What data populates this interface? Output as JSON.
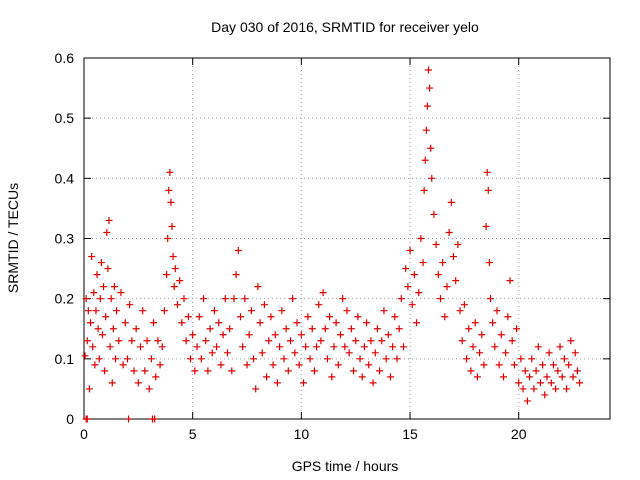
{
  "chart_data": {
    "type": "scatter",
    "title": "Day 030 of 2016, SRMTID for receiver yelo",
    "xlabel": "GPS time / hours",
    "ylabel": "SRMTID / TECUs",
    "xlim": [
      0,
      24.2
    ],
    "ylim": [
      0,
      0.6
    ],
    "x_ticks": [
      0,
      5,
      10,
      15,
      20
    ],
    "x_tick_labels": [
      "0",
      "5",
      "10",
      "15",
      "20"
    ],
    "y_ticks": [
      0,
      0.1,
      0.2,
      0.3,
      0.4,
      0.5,
      0.6
    ],
    "y_tick_labels": [
      "0",
      "0.1",
      "0.2",
      "0.3",
      "0.4",
      "0.5",
      "0.6"
    ],
    "grid": true,
    "marker": "+",
    "color": "#e00000",
    "series": [
      {
        "name": "SRMTID",
        "points": [
          [
            0.05,
            0.105
          ],
          [
            0.1,
            0.2
          ],
          [
            0.15,
            0.13
          ],
          [
            0.2,
            0.18
          ],
          [
            0.25,
            0.05
          ],
          [
            0.3,
            0.16
          ],
          [
            0.35,
            0.27
          ],
          [
            0.4,
            0.12
          ],
          [
            0.45,
            0.21
          ],
          [
            0.5,
            0.09
          ],
          [
            0.55,
            0.18
          ],
          [
            0.6,
            0.24
          ],
          [
            0.65,
            0.15
          ],
          [
            0.7,
            0.1
          ],
          [
            0.75,
            0.2
          ],
          [
            0.8,
            0.26
          ],
          [
            0.85,
            0.14
          ],
          [
            0.9,
            0.22
          ],
          [
            0.95,
            0.08
          ],
          [
            1.0,
            0.17
          ],
          [
            1.05,
            0.31
          ],
          [
            1.1,
            0.25
          ],
          [
            1.15,
            0.33
          ],
          [
            1.2,
            0.12
          ],
          [
            1.25,
            0.2
          ],
          [
            1.3,
            0.06
          ],
          [
            1.35,
            0.15
          ],
          [
            1.4,
            0.22
          ],
          [
            1.45,
            0.1
          ],
          [
            1.5,
            0.18
          ],
          [
            1.6,
            0.13
          ],
          [
            1.7,
            0.21
          ],
          [
            1.8,
            0.09
          ],
          [
            1.9,
            0.16
          ],
          [
            2.0,
            0.1
          ],
          [
            2.1,
            0.19
          ],
          [
            2.2,
            0.13
          ],
          [
            2.3,
            0.08
          ],
          [
            2.4,
            0.15
          ],
          [
            2.5,
            0.06
          ],
          [
            2.6,
            0.12
          ],
          [
            2.7,
            0.18
          ],
          [
            2.8,
            0.08
          ],
          [
            2.9,
            0.13
          ],
          [
            3.0,
            0.05
          ],
          [
            3.1,
            0.1
          ],
          [
            3.2,
            0.16
          ],
          [
            3.3,
            0.07
          ],
          [
            3.4,
            0.13
          ],
          [
            3.5,
            0.09
          ],
          [
            3.6,
            0.12
          ],
          [
            3.7,
            0.18
          ],
          [
            3.8,
            0.24
          ],
          [
            3.85,
            0.3
          ],
          [
            3.9,
            0.38
          ],
          [
            3.95,
            0.41
          ],
          [
            4.0,
            0.36
          ],
          [
            4.05,
            0.32
          ],
          [
            4.1,
            0.27
          ],
          [
            4.15,
            0.22
          ],
          [
            4.2,
            0.25
          ],
          [
            4.3,
            0.19
          ],
          [
            4.4,
            0.23
          ],
          [
            4.5,
            0.16
          ],
          [
            4.6,
            0.2
          ],
          [
            4.7,
            0.13
          ],
          [
            4.8,
            0.17
          ],
          [
            4.9,
            0.1
          ],
          [
            5.0,
            0.14
          ],
          [
            5.1,
            0.08
          ],
          [
            5.2,
            0.12
          ],
          [
            5.3,
            0.17
          ],
          [
            5.4,
            0.1
          ],
          [
            5.5,
            0.2
          ],
          [
            5.6,
            0.13
          ],
          [
            5.7,
            0.08
          ],
          [
            5.8,
            0.15
          ],
          [
            5.9,
            0.11
          ],
          [
            6.0,
            0.18
          ],
          [
            6.1,
            0.12
          ],
          [
            6.2,
            0.16
          ],
          [
            6.3,
            0.09
          ],
          [
            6.4,
            0.14
          ],
          [
            6.5,
            0.2
          ],
          [
            6.6,
            0.11
          ],
          [
            6.7,
            0.15
          ],
          [
            6.8,
            0.08
          ],
          [
            6.9,
            0.2
          ],
          [
            7.0,
            0.24
          ],
          [
            7.1,
            0.28
          ],
          [
            7.2,
            0.17
          ],
          [
            7.3,
            0.12
          ],
          [
            7.4,
            0.2
          ],
          [
            7.5,
            0.09
          ],
          [
            7.6,
            0.14
          ],
          [
            7.7,
            0.18
          ],
          [
            7.8,
            0.1
          ],
          [
            7.9,
            0.05
          ],
          [
            8.0,
            0.22
          ],
          [
            8.1,
            0.16
          ],
          [
            8.2,
            0.11
          ],
          [
            8.3,
            0.19
          ],
          [
            8.4,
            0.07
          ],
          [
            8.5,
            0.13
          ],
          [
            8.6,
            0.17
          ],
          [
            8.7,
            0.09
          ],
          [
            8.8,
            0.14
          ],
          [
            8.9,
            0.06
          ],
          [
            9.0,
            0.12
          ],
          [
            9.1,
            0.18
          ],
          [
            9.2,
            0.1
          ],
          [
            9.3,
            0.15
          ],
          [
            9.4,
            0.08
          ],
          [
            9.5,
            0.13
          ],
          [
            9.6,
            0.2
          ],
          [
            9.7,
            0.11
          ],
          [
            9.8,
            0.16
          ],
          [
            9.9,
            0.09
          ],
          [
            10.0,
            0.14
          ],
          [
            10.1,
            0.06
          ],
          [
            10.2,
            0.12
          ],
          [
            10.3,
            0.17
          ],
          [
            10.4,
            0.1
          ],
          [
            10.5,
            0.15
          ],
          [
            10.6,
            0.08
          ],
          [
            10.7,
            0.12
          ],
          [
            10.8,
            0.19
          ],
          [
            10.9,
            0.13
          ],
          [
            11.0,
            0.21
          ],
          [
            11.1,
            0.15
          ],
          [
            11.2,
            0.1
          ],
          [
            11.3,
            0.17
          ],
          [
            11.4,
            0.07
          ],
          [
            11.5,
            0.12
          ],
          [
            11.6,
            0.16
          ],
          [
            11.7,
            0.09
          ],
          [
            11.8,
            0.14
          ],
          [
            11.9,
            0.2
          ],
          [
            12.0,
            0.12
          ],
          [
            12.1,
            0.18
          ],
          [
            12.2,
            0.11
          ],
          [
            12.3,
            0.15
          ],
          [
            12.4,
            0.08
          ],
          [
            12.5,
            0.13
          ],
          [
            12.6,
            0.17
          ],
          [
            12.7,
            0.1
          ],
          [
            12.8,
            0.07
          ],
          [
            12.9,
            0.12
          ],
          [
            13.0,
            0.16
          ],
          [
            13.1,
            0.09
          ],
          [
            13.2,
            0.13
          ],
          [
            13.3,
            0.06
          ],
          [
            13.4,
            0.11
          ],
          [
            13.5,
            0.15
          ],
          [
            13.6,
            0.08
          ],
          [
            13.7,
            0.13
          ],
          [
            13.8,
            0.18
          ],
          [
            13.9,
            0.1
          ],
          [
            14.0,
            0.14
          ],
          [
            14.1,
            0.07
          ],
          [
            14.2,
            0.12
          ],
          [
            14.3,
            0.17
          ],
          [
            14.4,
            0.1
          ],
          [
            14.5,
            0.15
          ],
          [
            14.6,
            0.2
          ],
          [
            14.7,
            0.12
          ],
          [
            14.8,
            0.25
          ],
          [
            14.9,
            0.22
          ],
          [
            15.0,
            0.28
          ],
          [
            15.1,
            0.19
          ],
          [
            15.2,
            0.24
          ],
          [
            15.3,
            0.16
          ],
          [
            15.4,
            0.21
          ],
          [
            15.5,
            0.3
          ],
          [
            15.6,
            0.26
          ],
          [
            15.65,
            0.38
          ],
          [
            15.7,
            0.43
          ],
          [
            15.75,
            0.48
          ],
          [
            15.8,
            0.52
          ],
          [
            15.85,
            0.58
          ],
          [
            15.9,
            0.55
          ],
          [
            15.95,
            0.45
          ],
          [
            16.0,
            0.4
          ],
          [
            16.1,
            0.34
          ],
          [
            16.2,
            0.29
          ],
          [
            16.3,
            0.24
          ],
          [
            16.4,
            0.2
          ],
          [
            16.5,
            0.26
          ],
          [
            16.6,
            0.17
          ],
          [
            16.7,
            0.22
          ],
          [
            16.8,
            0.31
          ],
          [
            16.9,
            0.36
          ],
          [
            17.0,
            0.27
          ],
          [
            17.1,
            0.23
          ],
          [
            17.2,
            0.29
          ],
          [
            17.3,
            0.18
          ],
          [
            17.4,
            0.13
          ],
          [
            17.5,
            0.19
          ],
          [
            17.6,
            0.1
          ],
          [
            17.7,
            0.15
          ],
          [
            17.8,
            0.08
          ],
          [
            17.9,
            0.12
          ],
          [
            18.0,
            0.16
          ],
          [
            18.1,
            0.07
          ],
          [
            18.2,
            0.11
          ],
          [
            18.3,
            0.14
          ],
          [
            18.4,
            0.09
          ],
          [
            18.5,
            0.32
          ],
          [
            18.55,
            0.41
          ],
          [
            18.6,
            0.38
          ],
          [
            18.65,
            0.26
          ],
          [
            18.7,
            0.2
          ],
          [
            18.8,
            0.16
          ],
          [
            18.9,
            0.12
          ],
          [
            19.0,
            0.18
          ],
          [
            19.1,
            0.09
          ],
          [
            19.2,
            0.14
          ],
          [
            19.3,
            0.07
          ],
          [
            19.4,
            0.11
          ],
          [
            19.5,
            0.17
          ],
          [
            19.6,
            0.23
          ],
          [
            19.7,
            0.13
          ],
          [
            19.8,
            0.09
          ],
          [
            19.9,
            0.15
          ],
          [
            20.0,
            0.06
          ],
          [
            20.1,
            0.1
          ],
          [
            20.2,
            0.05
          ],
          [
            20.3,
            0.08
          ],
          [
            20.4,
            0.03
          ],
          [
            20.5,
            0.07
          ],
          [
            20.6,
            0.1
          ],
          [
            20.7,
            0.05
          ],
          [
            20.8,
            0.08
          ],
          [
            20.9,
            0.12
          ],
          [
            21.0,
            0.06
          ],
          [
            21.1,
            0.09
          ],
          [
            21.2,
            0.04
          ],
          [
            21.3,
            0.07
          ],
          [
            21.4,
            0.11
          ],
          [
            21.5,
            0.06
          ],
          [
            21.6,
            0.09
          ],
          [
            21.7,
            0.05
          ],
          [
            21.8,
            0.08
          ],
          [
            21.9,
            0.12
          ],
          [
            22.0,
            0.07
          ],
          [
            22.1,
            0.1
          ],
          [
            22.2,
            0.05
          ],
          [
            22.3,
            0.09
          ],
          [
            22.4,
            0.13
          ],
          [
            22.5,
            0.07
          ],
          [
            22.6,
            0.11
          ],
          [
            22.7,
            0.08
          ],
          [
            22.8,
            0.06
          ],
          [
            0.1,
            0.0
          ],
          [
            0.15,
            0.0
          ],
          [
            2.05,
            0.0
          ],
          [
            3.15,
            0.0
          ],
          [
            3.25,
            0.0
          ]
        ]
      }
    ]
  }
}
